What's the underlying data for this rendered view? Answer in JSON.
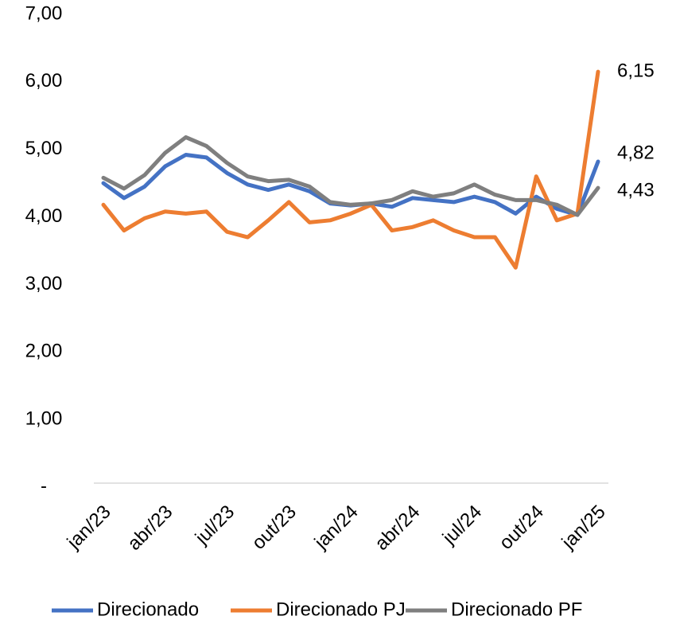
{
  "chart_data": {
    "type": "line",
    "categories": [
      "jan/23",
      null,
      null,
      "abr/23",
      null,
      null,
      "jul/23",
      null,
      null,
      "out/23",
      null,
      null,
      "jan/24",
      null,
      null,
      "abr/24",
      null,
      null,
      "jul/24",
      null,
      null,
      "out/24",
      null,
      null,
      "jan/25"
    ],
    "series": [
      {
        "name": "Direcionado",
        "color": "#4472c4",
        "values": [
          4.5,
          4.28,
          4.45,
          4.75,
          4.92,
          4.88,
          4.65,
          4.48,
          4.4,
          4.48,
          4.38,
          4.2,
          4.17,
          4.2,
          4.15,
          4.28,
          4.25,
          4.22,
          4.3,
          4.22,
          4.05,
          4.3,
          4.12,
          4.03,
          4.82
        ],
        "value_labels": [
          null,
          null,
          null,
          null,
          null,
          null,
          null,
          null,
          null,
          null,
          null,
          null,
          null,
          null,
          null,
          null,
          null,
          null,
          null,
          null,
          null,
          null,
          null,
          null,
          "4,82"
        ]
      },
      {
        "name": "Direcionado PJ",
        "color": "#ed7d31",
        "values": [
          4.18,
          3.8,
          3.98,
          4.08,
          4.05,
          4.08,
          3.78,
          3.7,
          3.95,
          4.22,
          3.92,
          3.95,
          4.05,
          4.18,
          3.8,
          3.85,
          3.95,
          3.8,
          3.7,
          3.7,
          3.25,
          4.6,
          3.95,
          4.05,
          6.15
        ],
        "value_labels": [
          null,
          null,
          null,
          null,
          null,
          null,
          null,
          null,
          null,
          null,
          null,
          null,
          null,
          null,
          null,
          null,
          null,
          null,
          null,
          null,
          null,
          null,
          null,
          null,
          "6,15"
        ]
      },
      {
        "name": "Direcionado PF",
        "color": "#7f7f7f",
        "values": [
          4.58,
          4.42,
          4.62,
          4.95,
          5.18,
          5.05,
          4.8,
          4.6,
          4.53,
          4.55,
          4.45,
          4.22,
          4.18,
          4.2,
          4.25,
          4.38,
          4.3,
          4.35,
          4.48,
          4.33,
          4.25,
          4.25,
          4.18,
          4.03,
          4.43
        ],
        "value_labels": [
          null,
          null,
          null,
          null,
          null,
          null,
          null,
          null,
          null,
          null,
          null,
          null,
          null,
          null,
          null,
          null,
          null,
          null,
          null,
          null,
          null,
          null,
          null,
          null,
          "4,43"
        ]
      }
    ],
    "ylim": [
      0,
      7
    ],
    "yticks": [
      {
        "value": 0,
        "label": "-"
      },
      {
        "value": 1,
        "label": "1,00"
      },
      {
        "value": 2,
        "label": "2,00"
      },
      {
        "value": 3,
        "label": "3,00"
      },
      {
        "value": 4,
        "label": "4,00"
      },
      {
        "value": 5,
        "label": "5,00"
      },
      {
        "value": 6,
        "label": "6,00"
      },
      {
        "value": 7,
        "label": "7,00"
      }
    ],
    "grid": false,
    "legend": "bottom"
  }
}
